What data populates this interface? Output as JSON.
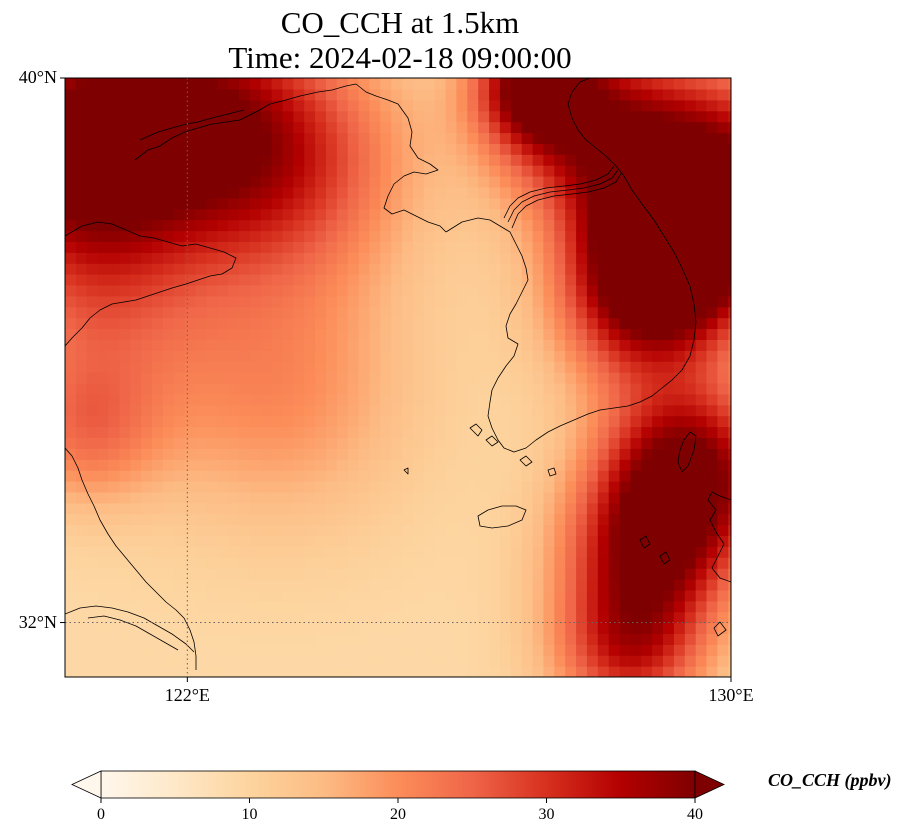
{
  "title": {
    "line1": "CO_CCH at 1.5km",
    "line2": "Time: 2024-02-18 09:00:00"
  },
  "map": {
    "lon_range": [
      120.2,
      130.0
    ],
    "lat_range": [
      31.2,
      40.0
    ],
    "projection": "PlateCarree",
    "gridlines": {
      "lon": [
        {
          "value": 122,
          "label": "122°E"
        }
      ],
      "lat": [
        {
          "value": 32,
          "label": "32°N"
        }
      ],
      "style": "dotted grey"
    },
    "axis_labels": {
      "lat": [
        {
          "value": 40,
          "label": "40°N"
        },
        {
          "value": 32,
          "label": "32°N"
        }
      ],
      "lon": [
        {
          "value": 122,
          "label": "122°E"
        },
        {
          "value": 130,
          "label": "130°E"
        }
      ]
    },
    "field": {
      "variable": "CO_CCH",
      "units": "ppbv",
      "colormap": "OrRd",
      "hotspots": [
        {
          "lon": 120.3,
          "lat": 39.0,
          "value": 36,
          "spread": 1.1
        },
        {
          "lon": 121.8,
          "lat": 39.5,
          "value": 30,
          "spread": 1.2
        },
        {
          "lon": 123.4,
          "lat": 38.8,
          "value": 29,
          "spread": 1.3
        },
        {
          "lon": 127.1,
          "lat": 39.9,
          "value": 35,
          "spread": 0.6
        },
        {
          "lon": 127.9,
          "lat": 39.3,
          "value": 31,
          "spread": 1.0
        },
        {
          "lon": 129.8,
          "lat": 38.4,
          "value": 40,
          "spread": 1.2
        },
        {
          "lon": 129.1,
          "lat": 37.5,
          "value": 37,
          "spread": 0.8
        },
        {
          "lon": 128.6,
          "lat": 36.6,
          "value": 28,
          "spread": 0.9
        },
        {
          "lon": 129.4,
          "lat": 34.3,
          "value": 37,
          "spread": 0.9
        },
        {
          "lon": 128.8,
          "lat": 33.1,
          "value": 34,
          "spread": 0.9
        },
        {
          "lon": 128.5,
          "lat": 31.6,
          "value": 30,
          "spread": 0.8
        },
        {
          "lon": 123.3,
          "lat": 35.4,
          "value": 20,
          "spread": 1.4
        },
        {
          "lon": 120.5,
          "lat": 34.8,
          "value": 21,
          "spread": 0.8
        },
        {
          "lon": 120.6,
          "lat": 36.9,
          "value": 22,
          "spread": 1.2
        }
      ]
    }
  },
  "colorbar": {
    "min": 0,
    "max": 40,
    "ticks": [
      {
        "value": 0,
        "label": "0"
      },
      {
        "value": 10,
        "label": "10"
      },
      {
        "value": 20,
        "label": "20"
      },
      {
        "value": 30,
        "label": "30"
      },
      {
        "value": 40,
        "label": "40"
      }
    ],
    "extend": "both",
    "label": "CO_CCH (ppbv)",
    "colors": [
      "#fff7ec",
      "#fee8c8",
      "#fdd49e",
      "#fdbb84",
      "#fc8d59",
      "#ef6548",
      "#d7301f",
      "#b30000",
      "#7f0000"
    ]
  }
}
